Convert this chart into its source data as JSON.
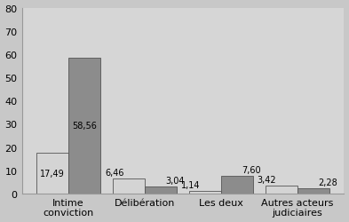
{
  "categories": [
    "Intime\nconviction",
    "Délibération",
    "Les deux",
    "Autres acteurs\njudiciaires"
  ],
  "values_light": [
    17.49,
    6.46,
    1.14,
    3.42
  ],
  "values_dark": [
    58.56,
    3.04,
    7.6,
    2.28
  ],
  "labels_light": [
    "17,49",
    "6,46",
    "1,14",
    "3,42"
  ],
  "labels_dark": [
    "58,56",
    "3,04",
    "7,60",
    "2,28"
  ],
  "color_light": "#d4d4d4",
  "color_dark": "#8c8c8c",
  "bar_edge_color": "#555555",
  "ylim": [
    0,
    80
  ],
  "yticks": [
    0,
    10,
    20,
    30,
    40,
    50,
    60,
    70,
    80
  ],
  "background_color": "#c8c8c8",
  "plot_area_color": "#d6d6d6",
  "bar_width": 0.42,
  "fontsize_labels": 7,
  "fontsize_ticks": 8,
  "label_light_inside_threshold": 8,
  "label_dark_inside_threshold": 8
}
